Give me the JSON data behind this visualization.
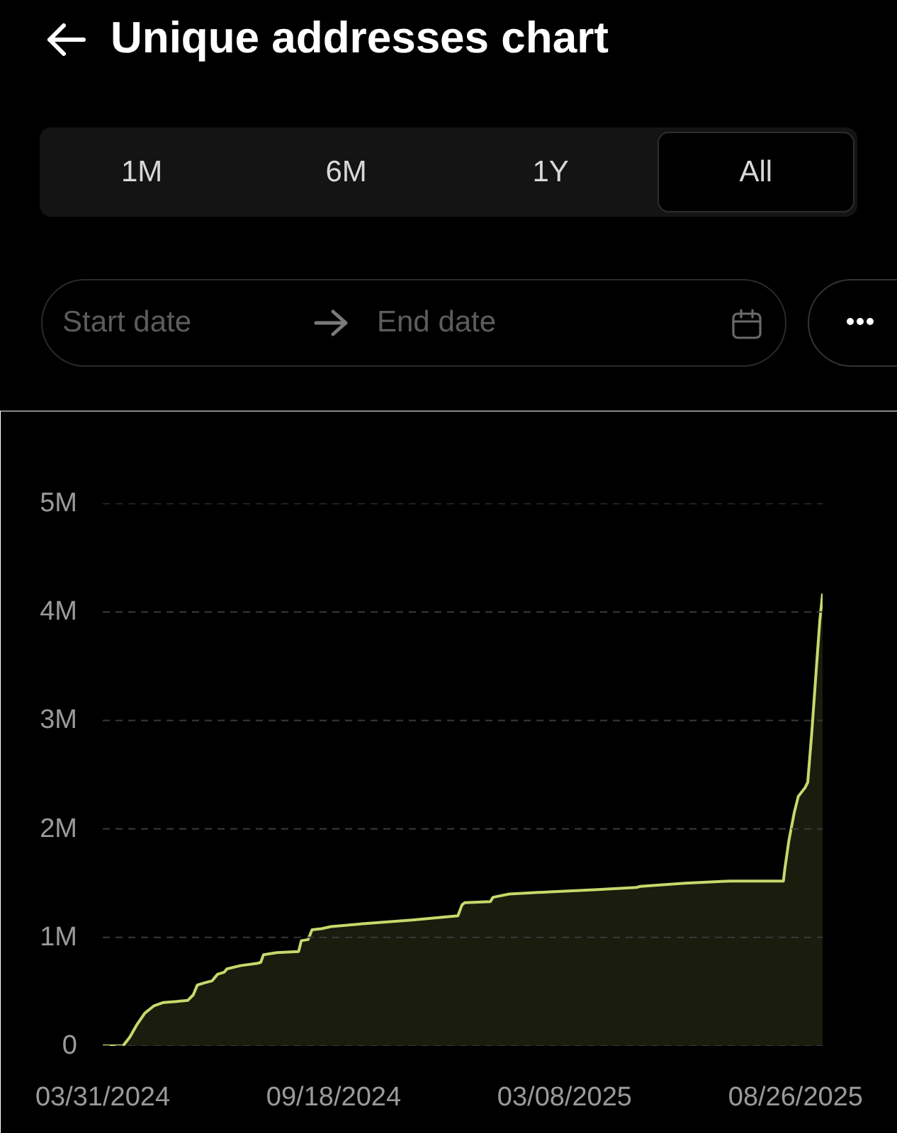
{
  "chart_data": {
    "type": "area",
    "title": "Unique addresses chart",
    "annotations": [
      "1M",
      "6M",
      "1Y",
      "All",
      "Start date",
      "End date"
    ],
    "x": [
      "2024-03-31",
      "2024-04-15",
      "2024-04-20",
      "2024-04-25",
      "2024-05-01",
      "2024-05-08",
      "2024-05-15",
      "2024-05-25",
      "2024-06-02",
      "2024-06-06",
      "2024-06-09",
      "2024-06-14",
      "2024-06-20",
      "2024-06-24",
      "2024-06-29",
      "2024-07-01",
      "2024-07-11",
      "2024-07-23",
      "2024-07-26",
      "2024-07-28",
      "2024-08-07",
      "2024-08-23",
      "2024-08-25",
      "2024-08-30",
      "2024-09-02",
      "2024-09-09",
      "2024-09-16",
      "2024-10-13",
      "2024-11-15",
      "2024-12-19",
      "2024-12-22",
      "2024-12-24",
      "2025-01-12",
      "2025-01-14",
      "2025-01-26",
      "2025-02-25",
      "2025-03-30",
      "2025-04-30",
      "2025-05-03",
      "2025-06-05",
      "2025-07-09",
      "2025-08-17",
      "2025-08-18",
      "2025-08-21",
      "2025-08-25",
      "2025-08-28",
      "2025-09-02",
      "2025-09-04",
      "2025-09-07",
      "2025-09-11",
      "2025-09-13",
      "2025-09-15"
    ],
    "series": [
      {
        "color": "#c8d86b",
        "values": [
          0,
          0,
          80000,
          190000,
          300000,
          370000,
          400000,
          410000,
          420000,
          470000,
          560000,
          580000,
          600000,
          660000,
          680000,
          710000,
          740000,
          760000,
          770000,
          840000,
          860000,
          870000,
          970000,
          980000,
          1070000,
          1080000,
          1100000,
          1130000,
          1160000,
          1200000,
          1300000,
          1320000,
          1330000,
          1370000,
          1400000,
          1420000,
          1440000,
          1460000,
          1470000,
          1500000,
          1520000,
          1520000,
          1630000,
          1890000,
          2150000,
          2300000,
          2380000,
          2430000,
          2890000,
          3590000,
          3930000,
          4170000
        ]
      }
    ],
    "xlim": [
      "2024-03-31",
      "2025-09-15"
    ],
    "xticks": [
      {
        "value": "2024-03-31",
        "label": "03/31/2024"
      },
      {
        "value": "2024-09-18",
        "label": "09/18/2024"
      },
      {
        "value": "2025-03-08",
        "label": "03/08/2025"
      },
      {
        "value": "2025-08-26",
        "label": "08/26/2025"
      }
    ],
    "ylim": [
      0,
      5000000
    ],
    "yticks": [
      0,
      {
        "value": 1000000,
        "label": "1M"
      },
      {
        "value": 2000000,
        "label": "2M"
      },
      {
        "value": 3000000,
        "label": "3M"
      },
      {
        "value": 4000000,
        "label": "4M"
      },
      {
        "value": 5000000,
        "label": "5M"
      }
    ],
    "grid": "y",
    "line_style": "solid"
  }
}
